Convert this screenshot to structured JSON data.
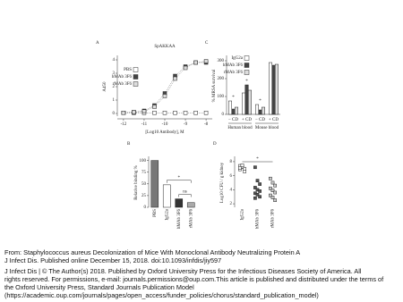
{
  "chart_data": [
    {
      "type": "line",
      "label": "A",
      "title": "SpAKKAA",
      "y_label": "A450",
      "x_label": "[Log10 Antibody], M",
      "x": [
        -12,
        -11.5,
        -11,
        -10.5,
        -10,
        -9.5,
        -9,
        -8.5,
        -8
      ],
      "xlim": [
        -12.3,
        -7.7
      ],
      "xticks": [
        -12,
        -11,
        -10,
        -9,
        -8
      ],
      "ylim": [
        -0.2,
        4.2
      ],
      "yticks": [
        0,
        1,
        2,
        3,
        4
      ],
      "legend": "upper left",
      "series": [
        {
          "name": "PBS",
          "color": "#ffffff",
          "values": [
            0.05,
            0.05,
            0.05,
            0.05,
            0.05,
            0.05,
            0.05,
            0.05,
            0.05
          ]
        },
        {
          "name": "hMAb 3F6",
          "color": "#444444",
          "values": [
            0.05,
            0.1,
            0.2,
            0.6,
            1.5,
            2.8,
            3.5,
            3.8,
            3.8
          ]
        },
        {
          "name": "rMAb 3F6",
          "color": "#dddddd",
          "values": [
            0.05,
            0.1,
            0.15,
            0.5,
            1.3,
            2.6,
            3.4,
            3.8,
            3.9
          ]
        }
      ]
    },
    {
      "type": "bar",
      "label": "B",
      "y_label": "Relative binding %",
      "categories": [
        "PBS",
        "IgG2a",
        "hMAb 3F6",
        "rMAb 3F6"
      ],
      "values": [
        100,
        48,
        18,
        10
      ],
      "colors": [
        "#777777",
        "#ffffff",
        "#333333",
        "#aaaaaa"
      ],
      "ylim": [
        0,
        105
      ],
      "yticks": [
        0,
        25,
        50,
        75,
        100
      ],
      "annotations": [
        "*",
        "ns"
      ]
    },
    {
      "type": "grouped-bar",
      "label": "C",
      "y_label": "% MRSA survival",
      "categories": [
        "− CD",
        "+ CD",
        "− CD",
        "+ CD"
      ],
      "groups": [
        "Human blood",
        "Mouse blood"
      ],
      "ylim": [
        0,
        320
      ],
      "yticks": [
        0,
        100,
        200,
        300
      ],
      "legend": "upper left",
      "series": [
        {
          "name": "IgG2a",
          "color": "#ffffff",
          "values": [
            75,
            120,
            55,
            290
          ]
        },
        {
          "name": "hMAb 3F6",
          "color": "#444444",
          "values": [
            30,
            165,
            25,
            275
          ]
        },
        {
          "name": "rMAb 3F6",
          "color": "#dddddd",
          "values": [
            40,
            135,
            40,
            280
          ]
        }
      ],
      "annotations": [
        "*",
        "*",
        "*"
      ]
    },
    {
      "type": "strip",
      "label": "D",
      "y_label": "Log10 CFU / g kidney",
      "categories": [
        "IgG2a",
        "hMAb 3F6",
        "rMAb 3F6"
      ],
      "ylim": [
        1.5,
        8.5
      ],
      "yticks": [
        2,
        4,
        6,
        8
      ],
      "annotations": [
        "*"
      ],
      "series": [
        {
          "name": "IgG2a",
          "color": "#ffffff",
          "values": [
            7.4,
            7.2,
            7.0,
            6.9,
            7.3,
            6.6,
            7.1,
            7.5
          ]
        },
        {
          "name": "hMAb 3F6",
          "color": "#555555",
          "values": [
            7.2,
            5.3,
            4.8,
            4.3,
            4.0,
            3.8,
            3.5,
            3.3,
            3.0,
            2.8
          ]
        },
        {
          "name": "rMAb 3F6",
          "color": "#cccccc",
          "values": [
            5.6,
            5.0,
            4.6,
            4.2,
            3.9,
            3.6,
            3.2,
            2.9,
            2.5
          ]
        }
      ]
    }
  ],
  "caption": [
    "From: Staphylococcus aureus Decolonization of Mice With Monoclonal Antibody Neutralizing Protein A",
    "J Infect Dis. Published online  December 15, 2018. doi:10.1093/infdis/jiy597",
    "J Infect Dis | © The Author(s) 2018. Published by Oxford University Press for the Infectious Diseases Society of America. All",
    "rights reserved. For permissions, e-mail: journals.permissions@oup.com.This article is published and distributed under the terms of",
    "the Oxford University Press, Standard Journals Publication Model",
    "(https://academic.oup.com/journals/pages/open_access/funder_policies/chorus/standard_publication_model)"
  ]
}
